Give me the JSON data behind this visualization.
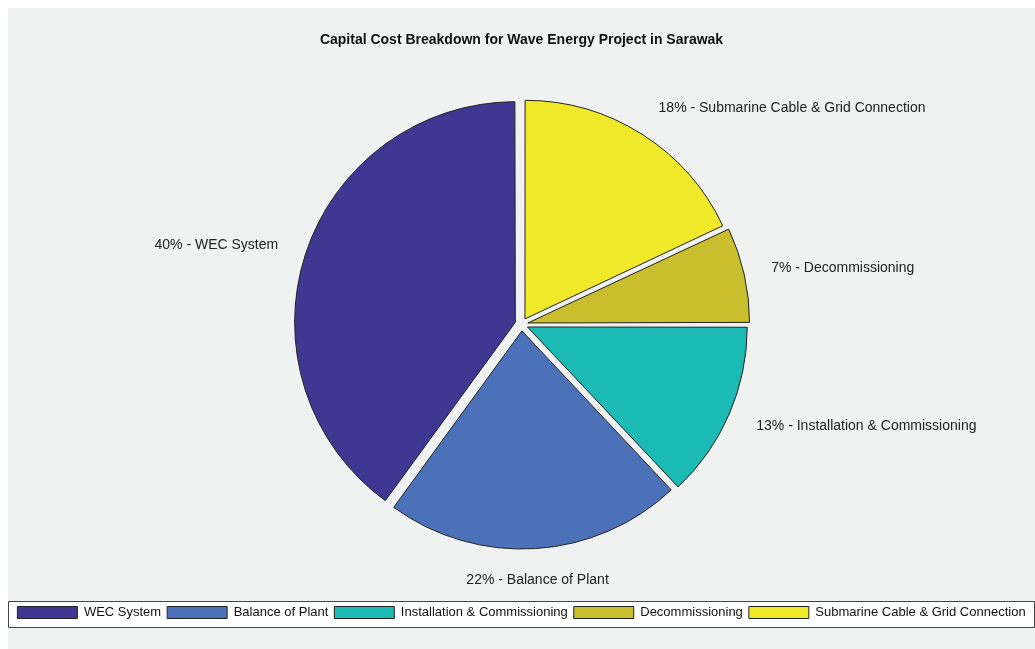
{
  "chart_data": {
    "type": "pie",
    "title": "Capital Cost Breakdown for Wave Energy Project in Sarawak",
    "categories": [
      "WEC System",
      "Balance of Plant",
      "Installation & Commissioning",
      "Decommissioning",
      "Submarine Cable & Grid Connection"
    ],
    "values": [
      40,
      22,
      13,
      7,
      18
    ],
    "colors": [
      "#3f3893",
      "#4b72b8",
      "#1bbab4",
      "#c9bf2e",
      "#f0e929"
    ],
    "value_labels": [
      "40% - WEC System",
      "22% - Balance of Plant",
      "13% - Installation & Commissioning",
      "7% - Decommissioning",
      "18% - Submarine Cable & Grid Connection"
    ],
    "legend": "bottom"
  }
}
